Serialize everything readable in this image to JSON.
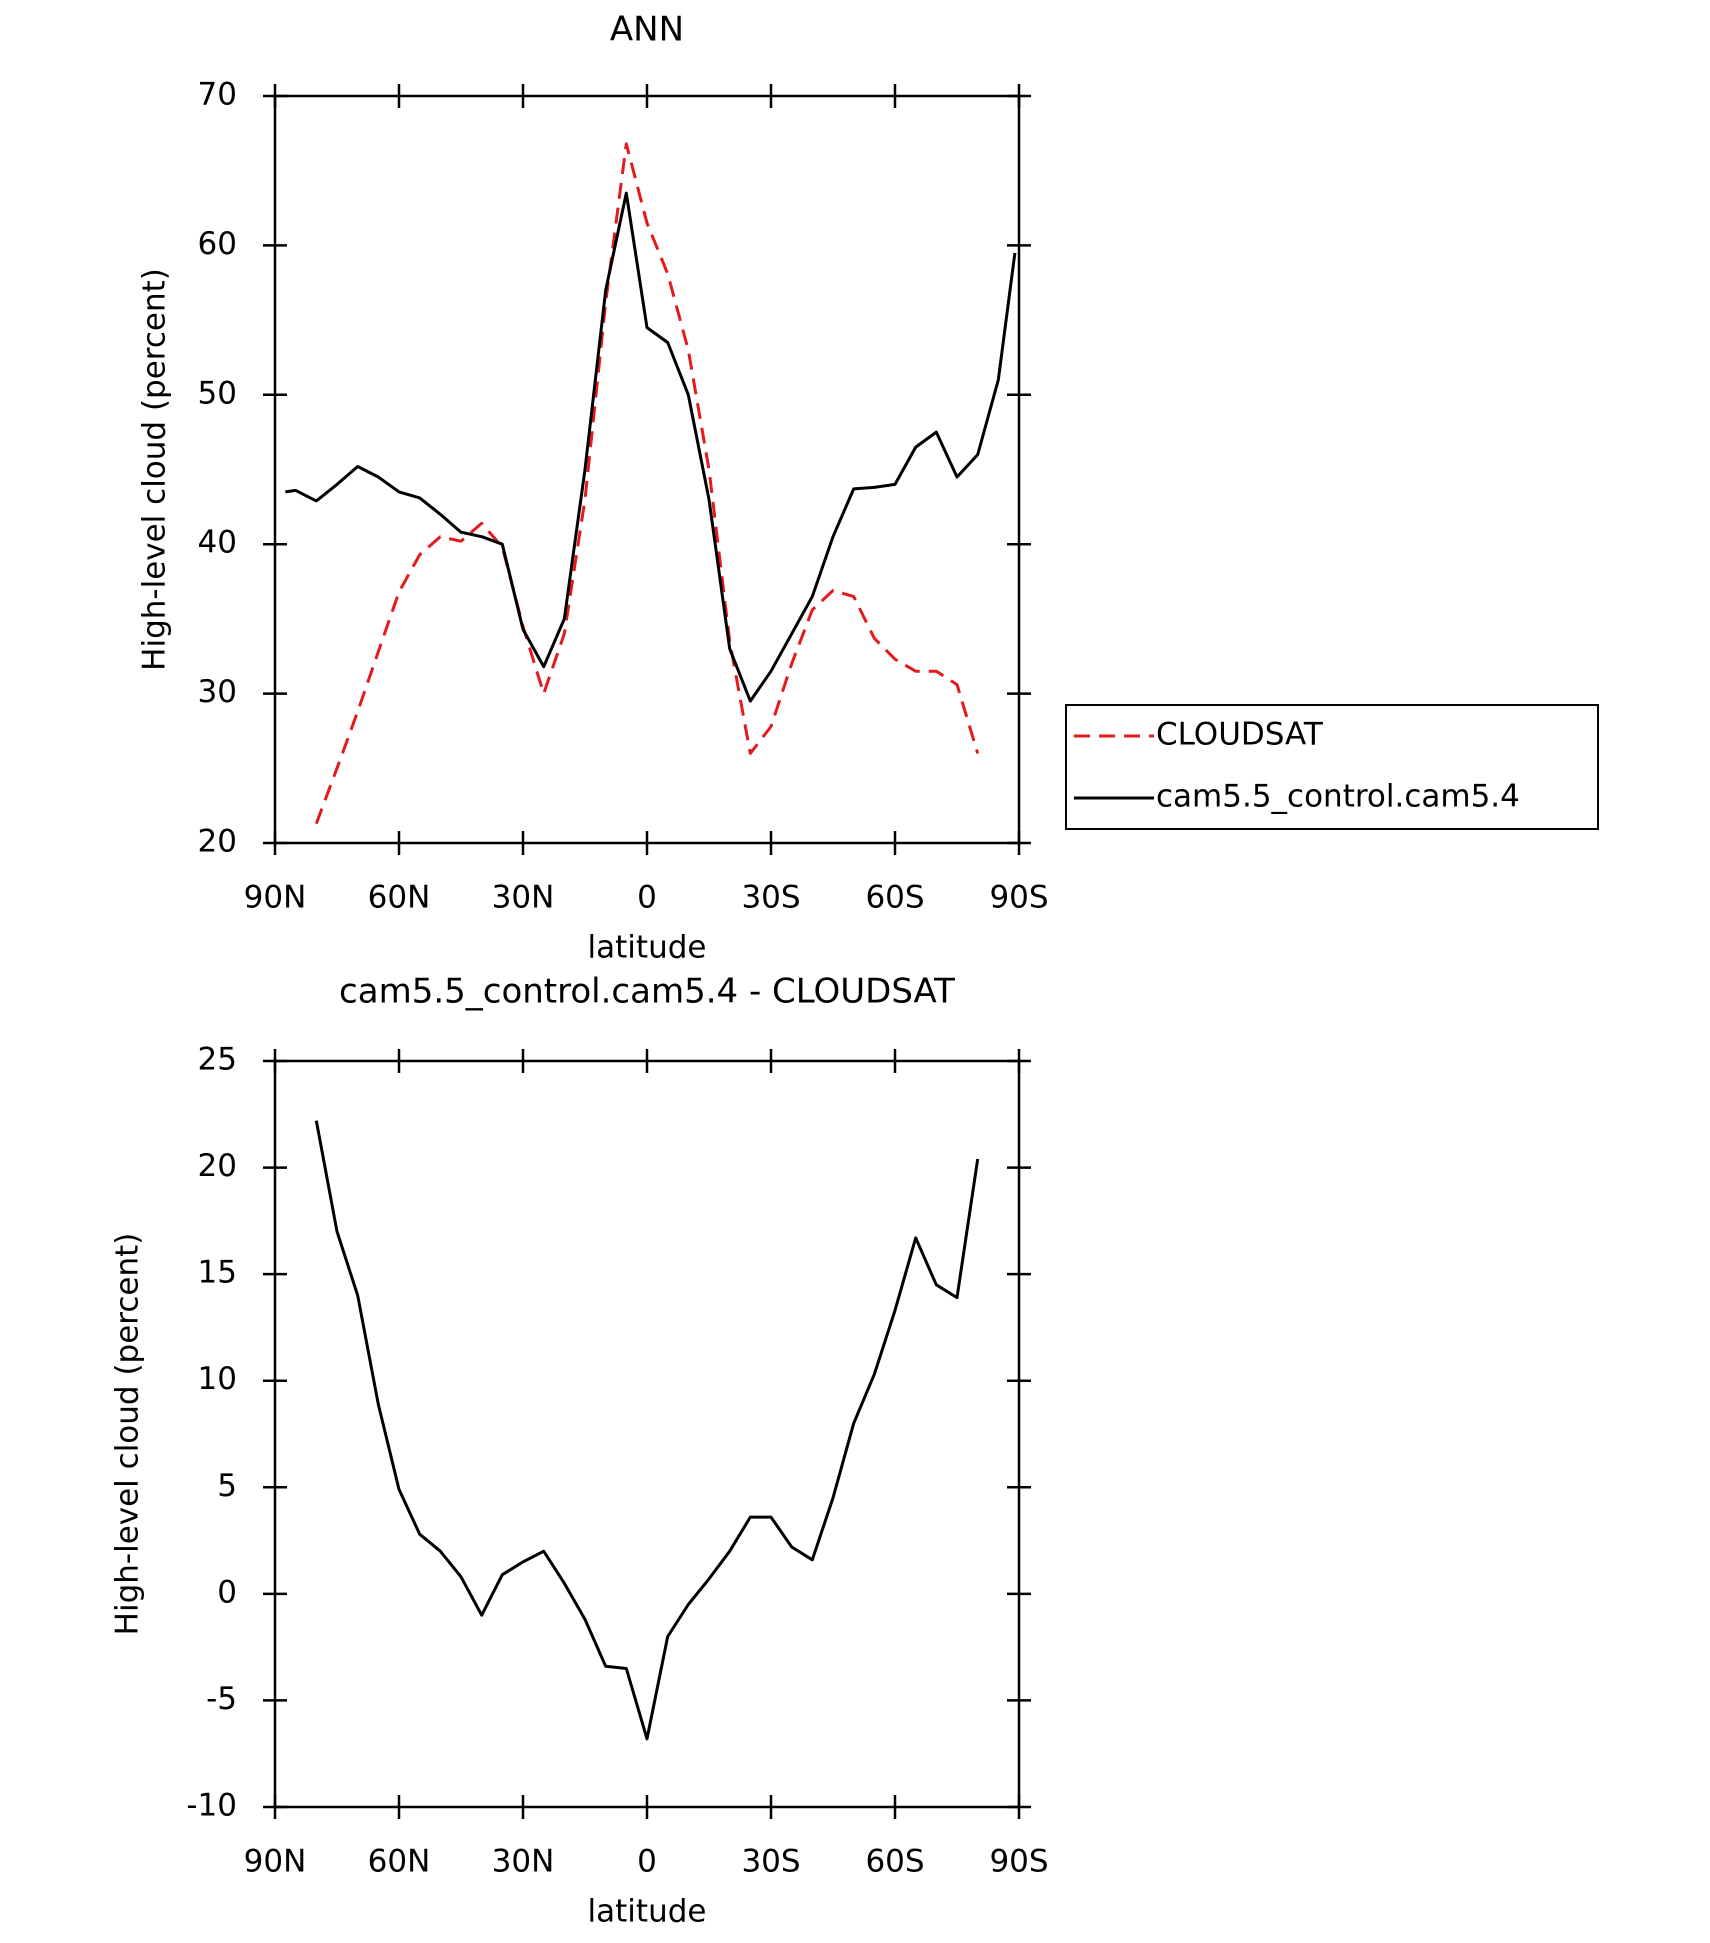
{
  "chart_data": [
    {
      "type": "line",
      "title": "ANN",
      "xlabel": "latitude",
      "ylabel": "High-level cloud (percent)",
      "xlim": [
        90,
        -90
      ],
      "xticks": [
        {
          "value": 90,
          "label": "90N"
        },
        {
          "value": 60,
          "label": "60N"
        },
        {
          "value": 30,
          "label": "30N"
        },
        0,
        {
          "value": -30,
          "label": "30S"
        },
        {
          "value": -60,
          "label": "60S"
        },
        {
          "value": -90,
          "label": "90S"
        }
      ],
      "ylim": [
        20,
        70
      ],
      "yticks": [
        20,
        30,
        40,
        50,
        60,
        70
      ],
      "legend": "right",
      "series": [
        {
          "name": "CLOUDSAT",
          "color": "#e41a1c",
          "linestyle": "dashed",
          "x": [
            80,
            75,
            70,
            65,
            60,
            55,
            50,
            45,
            40,
            35,
            30,
            25,
            20,
            15,
            10,
            5,
            0,
            -5,
            -10,
            -15,
            -20,
            -25,
            -30,
            -35,
            -40,
            -45,
            -50,
            -55,
            -60,
            -65,
            -70,
            -75,
            -80
          ],
          "values": [
            21.3,
            25.0,
            28.8,
            32.8,
            36.8,
            39.3,
            40.5,
            40.2,
            41.4,
            39.8,
            34.5,
            30.0,
            34.0,
            43.0,
            56.2,
            66.8,
            61.5,
            58.1,
            53.0,
            45.0,
            33.5,
            26.0,
            27.8,
            32.0,
            35.6,
            36.9,
            36.5,
            33.7,
            32.3,
            31.5,
            31.5,
            30.6,
            26.0
          ]
        },
        {
          "name": "cam5.5_control.cam5.4",
          "color": "#000000",
          "linestyle": "solid",
          "x": [
            87.5,
            85,
            80,
            75,
            70,
            65,
            60,
            55,
            50,
            45,
            40,
            35,
            30,
            25,
            20,
            15,
            10,
            5,
            0,
            -5,
            -10,
            -15,
            -20,
            -25,
            -30,
            -35,
            -40,
            -45,
            -50,
            -55,
            -60,
            -65,
            -70,
            -75,
            -80,
            -85,
            -89
          ],
          "values": [
            43.5,
            43.6,
            42.9,
            44.0,
            45.2,
            44.5,
            43.5,
            43.1,
            42.0,
            40.8,
            40.5,
            40.0,
            34.3,
            31.8,
            35.0,
            45.0,
            57.0,
            63.5,
            54.5,
            53.5,
            50.0,
            43.0,
            33.0,
            29.5,
            31.5,
            34.0,
            36.5,
            40.5,
            43.7,
            43.8,
            44.0,
            46.5,
            47.5,
            44.5,
            46.0,
            51.0,
            59.5
          ]
        }
      ]
    },
    {
      "type": "line",
      "title": "cam5.5_control.cam5.4 - CLOUDSAT",
      "xlabel": "latitude",
      "ylabel": "High-level cloud (percent)",
      "xlim": [
        90,
        -90
      ],
      "xticks": [
        {
          "value": 90,
          "label": "90N"
        },
        {
          "value": 60,
          "label": "60N"
        },
        {
          "value": 30,
          "label": "30N"
        },
        0,
        {
          "value": -30,
          "label": "30S"
        },
        {
          "value": -60,
          "label": "60S"
        },
        {
          "value": -90,
          "label": "90S"
        }
      ],
      "ylim": [
        -10,
        25
      ],
      "yticks": [
        -10,
        -5,
        0,
        5,
        10,
        15,
        20,
        25
      ],
      "series": [
        {
          "color": "#000000",
          "linestyle": "solid",
          "x": [
            80,
            75,
            70,
            65,
            60,
            55,
            50,
            45,
            40,
            35,
            30,
            25,
            20,
            15,
            10,
            5,
            0,
            -5,
            -10,
            -15,
            -20,
            -25,
            -30,
            -35,
            -40,
            -45,
            -50,
            -55,
            -60,
            -65,
            -70,
            -75,
            -80
          ],
          "values": [
            22.2,
            17.0,
            14.0,
            8.9,
            4.9,
            2.8,
            2.0,
            0.8,
            -1.0,
            0.9,
            1.5,
            2.0,
            0.5,
            -1.2,
            -3.4,
            -3.5,
            -6.8,
            -2.0,
            -0.5,
            0.7,
            2.0,
            3.6,
            3.6,
            2.2,
            1.6,
            4.5,
            8.0,
            10.3,
            13.3,
            16.7,
            14.5,
            13.9,
            20.4
          ]
        }
      ]
    }
  ]
}
